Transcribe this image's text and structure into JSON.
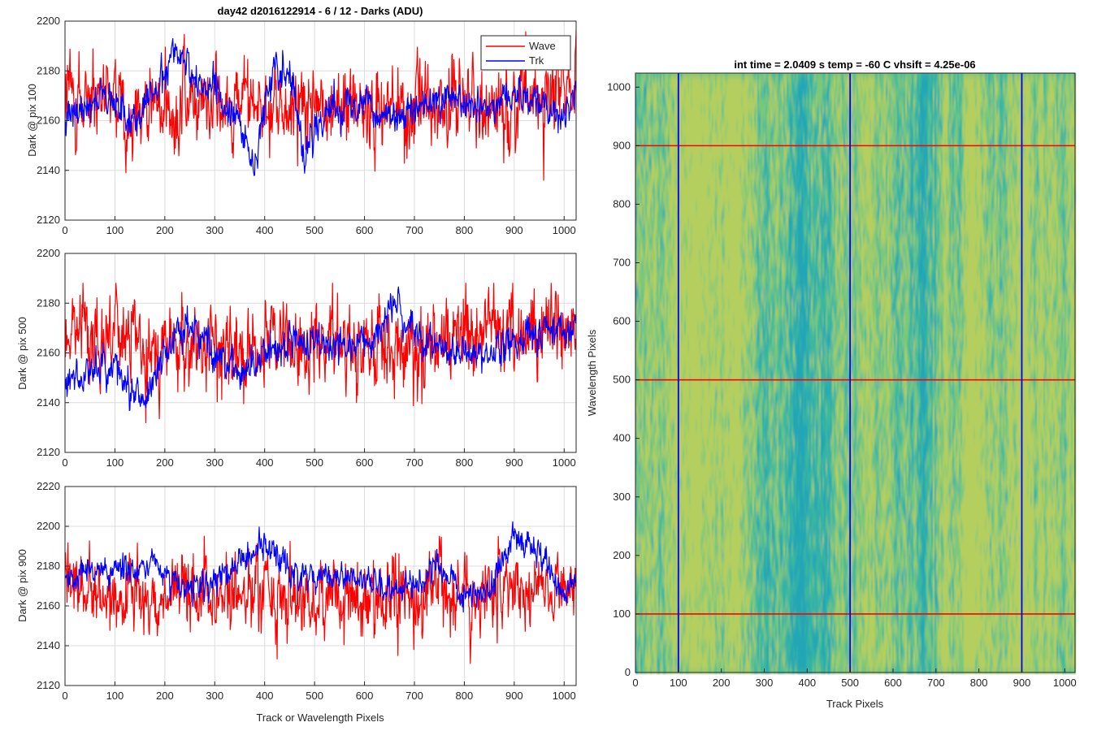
{
  "chart_data": [
    {
      "type": "line",
      "title": "day42 d2016122914 - 6 / 12 - Darks (ADU)",
      "xlabel": "",
      "ylabel": "Dark @ pix 100",
      "xlim": [
        0,
        1024
      ],
      "ylim": [
        2120,
        2200
      ],
      "xticks": [
        "0",
        "100",
        "200",
        "300",
        "400",
        "500",
        "600",
        "700",
        "800",
        "900",
        "1000"
      ],
      "yticks": [
        "2120",
        "2140",
        "2160",
        "2180",
        "2200"
      ],
      "grid": true,
      "legend": {
        "placement": "top-right",
        "entries": [
          "Wave",
          "Trk"
        ]
      },
      "series": [
        {
          "name": "Wave",
          "color": "#ff0000",
          "x": [
            0,
            64,
            128,
            192,
            256,
            320,
            384,
            448,
            512,
            576,
            640,
            704,
            768,
            832,
            896,
            960,
            1024
          ],
          "values": [
            2168,
            2167,
            2166,
            2165,
            2166,
            2167,
            2165,
            2166,
            2165,
            2166,
            2166,
            2165,
            2168,
            2168,
            2167,
            2168,
            2175
          ],
          "noise_amp": 12,
          "range": [
            2125,
            2198
          ]
        },
        {
          "name": "Trk",
          "color": "#0000ff",
          "x": [
            0,
            30,
            60,
            100,
            150,
            200,
            215,
            250,
            300,
            350,
            380,
            400,
            420,
            450,
            480,
            520,
            560,
            600,
            660,
            720,
            780,
            850,
            900,
            950,
            1000,
            1024
          ],
          "values": [
            2160,
            2163,
            2170,
            2166,
            2162,
            2180,
            2188,
            2178,
            2172,
            2158,
            2140,
            2168,
            2184,
            2180,
            2145,
            2165,
            2167,
            2168,
            2160,
            2165,
            2170,
            2165,
            2172,
            2168,
            2162,
            2170
          ],
          "noise_amp": 5,
          "range": [
            2122,
            2197
          ]
        }
      ]
    },
    {
      "type": "line",
      "title": "",
      "xlabel": "",
      "ylabel": "Dark @ pix 500",
      "xlim": [
        0,
        1024
      ],
      "ylim": [
        2120,
        2200
      ],
      "xticks": [
        "0",
        "100",
        "200",
        "300",
        "400",
        "500",
        "600",
        "700",
        "800",
        "900",
        "1000"
      ],
      "yticks": [
        "2120",
        "2140",
        "2160",
        "2180",
        "2200"
      ],
      "grid": true,
      "series": [
        {
          "name": "Wave",
          "color": "#ff0000",
          "x": [
            0,
            100,
            200,
            300,
            400,
            500,
            600,
            700,
            800,
            900,
            1024
          ],
          "values": [
            2170,
            2166,
            2164,
            2163,
            2162,
            2164,
            2164,
            2163,
            2166,
            2170,
            2168
          ],
          "noise_amp": 12,
          "range": [
            2128,
            2188
          ]
        },
        {
          "name": "Trk",
          "color": "#0000ff",
          "x": [
            0,
            50,
            100,
            130,
            160,
            200,
            250,
            300,
            350,
            400,
            450,
            500,
            550,
            600,
            640,
            660,
            680,
            720,
            780,
            850,
            900,
            950,
            1024
          ],
          "values": [
            2148,
            2152,
            2155,
            2145,
            2140,
            2162,
            2172,
            2160,
            2152,
            2160,
            2166,
            2162,
            2165,
            2160,
            2170,
            2182,
            2170,
            2164,
            2160,
            2158,
            2165,
            2170,
            2166
          ],
          "noise_amp": 5,
          "range": [
            2123,
            2196
          ]
        }
      ]
    },
    {
      "type": "line",
      "title": "",
      "xlabel": "Track or Wavelength Pixels",
      "ylabel": "Dark @ pix 900",
      "xlim": [
        0,
        1024
      ],
      "ylim": [
        2120,
        2220
      ],
      "xticks": [
        "0",
        "100",
        "200",
        "300",
        "400",
        "500",
        "600",
        "700",
        "800",
        "900",
        "1000"
      ],
      "yticks": [
        "2120",
        "2140",
        "2160",
        "2180",
        "2200",
        "2220"
      ],
      "grid": true,
      "series": [
        {
          "name": "Wave",
          "color": "#ff0000",
          "x": [
            0,
            100,
            200,
            300,
            400,
            500,
            600,
            700,
            800,
            900,
            1024
          ],
          "values": [
            2170,
            2168,
            2165,
            2166,
            2165,
            2163,
            2165,
            2166,
            2167,
            2170,
            2168
          ],
          "noise_amp": 13,
          "range": [
            2122,
            2195
          ]
        },
        {
          "name": "Trk",
          "color": "#0000ff",
          "x": [
            0,
            50,
            100,
            150,
            180,
            220,
            260,
            300,
            350,
            400,
            450,
            500,
            550,
            600,
            650,
            700,
            750,
            800,
            850,
            900,
            950,
            1000,
            1024
          ],
          "values": [
            2175,
            2178,
            2180,
            2176,
            2185,
            2170,
            2165,
            2172,
            2182,
            2190,
            2178,
            2172,
            2176,
            2172,
            2168,
            2170,
            2180,
            2165,
            2168,
            2195,
            2188,
            2165,
            2175
          ],
          "noise_amp": 5,
          "range": [
            2155,
            2208
          ]
        }
      ]
    },
    {
      "type": "heatmap",
      "title": "int time = 2.0409 s    temp = -60 C    vhsift = 4.25e-06",
      "xlabel": "Track Pixels",
      "ylabel": "Wavelength Pixels",
      "xlim": [
        0,
        1024
      ],
      "ylim": [
        0,
        1024
      ],
      "xticks": [
        "0",
        "100",
        "200",
        "300",
        "400",
        "500",
        "600",
        "700",
        "800",
        "900",
        "1000"
      ],
      "yticks": [
        "0",
        "100",
        "200",
        "300",
        "400",
        "500",
        "600",
        "700",
        "800",
        "900",
        "1000"
      ],
      "colormap": [
        "#21a6b5",
        "#3ab89e",
        "#7cc87a",
        "#b5cf5e"
      ],
      "vertical_lines": {
        "x": [
          100,
          500,
          900
        ],
        "color": "#0000ff"
      },
      "horizontal_lines": {
        "y": [
          100,
          500,
          900
        ],
        "color": "#ff0000"
      }
    }
  ]
}
